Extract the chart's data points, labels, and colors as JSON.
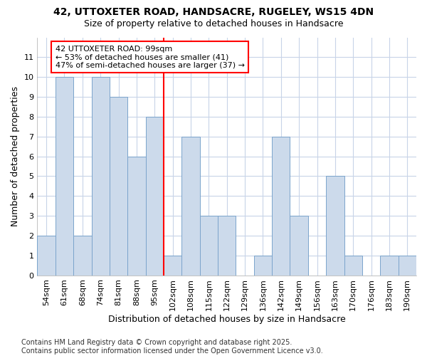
{
  "title1": "42, UTTOXETER ROAD, HANDSACRE, RUGELEY, WS15 4DN",
  "title2": "Size of property relative to detached houses in Handsacre",
  "xlabel": "Distribution of detached houses by size in Handsacre",
  "ylabel": "Number of detached properties",
  "footnote1": "Contains HM Land Registry data © Crown copyright and database right 2025.",
  "footnote2": "Contains public sector information licensed under the Open Government Licence v3.0.",
  "bin_labels": [
    "54sqm",
    "61sqm",
    "68sqm",
    "74sqm",
    "81sqm",
    "88sqm",
    "95sqm",
    "102sqm",
    "108sqm",
    "115sqm",
    "122sqm",
    "129sqm",
    "136sqm",
    "142sqm",
    "149sqm",
    "156sqm",
    "163sqm",
    "170sqm",
    "176sqm",
    "183sqm",
    "190sqm"
  ],
  "bar_heights": [
    2,
    10,
    2,
    10,
    9,
    6,
    8,
    1,
    7,
    3,
    3,
    0,
    1,
    7,
    3,
    0,
    5,
    1,
    0,
    1,
    1
  ],
  "bar_color": "#ccdaeb",
  "bar_edge_color": "#7ba4cc",
  "vline_index": 6,
  "vline_color": "red",
  "annotation_text": "42 UTTOXETER ROAD: 99sqm\n← 53% of detached houses are smaller (41)\n47% of semi-detached houses are larger (37) →",
  "annotation_box_color": "white",
  "annotation_box_edge": "red",
  "ylim": [
    0,
    12
  ],
  "yticks": [
    0,
    1,
    2,
    3,
    4,
    5,
    6,
    7,
    8,
    9,
    10,
    11,
    12
  ],
  "bg_color": "#ffffff",
  "plot_bg_color": "#ffffff",
  "grid_color": "#c8d4e8",
  "title_fontsize": 10,
  "subtitle_fontsize": 9,
  "axis_label_fontsize": 9,
  "tick_fontsize": 8,
  "annotation_fontsize": 8,
  "footnote_fontsize": 7
}
